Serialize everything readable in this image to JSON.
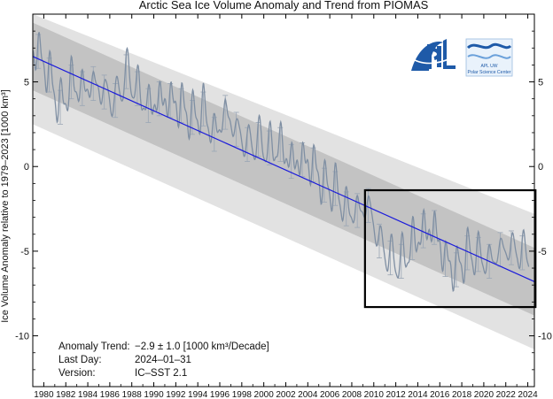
{
  "chart_data": {
    "type": "line",
    "title": "Arctic Sea Ice Volume Anomaly and Trend from PIOMAS",
    "ylabel": "Ice Volume Anomaly relative to 1979–2023 [1000 km³]",
    "xlim": [
      1979.0,
      2024.6
    ],
    "ylim": [
      -13,
      9
    ],
    "x_ticks": [
      "1980",
      "1982",
      "1984",
      "1986",
      "1988",
      "1990",
      "1992",
      "1994",
      "1996",
      "1998",
      "2000",
      "2002",
      "2004",
      "2006",
      "2008",
      "2010",
      "2012",
      "2014",
      "2016",
      "2018",
      "2020",
      "2022",
      "2024"
    ],
    "y_ticks": [
      "-10",
      "-5",
      "0",
      "5"
    ],
    "trend": {
      "start": [
        1979.0,
        6.5
      ],
      "end": [
        2024.6,
        -6.8
      ]
    },
    "bands": [
      {
        "name": "",
        "offset": 2.0,
        "color": "#c3c3c3"
      },
      {
        "name": "",
        "offset": 4.0,
        "color": "#e2e2e2"
      }
    ],
    "annual_points": [
      [
        1979.5,
        6.8
      ],
      [
        1980.5,
        5.4
      ],
      [
        1981.5,
        3.5
      ],
      [
        1982.5,
        5.0
      ],
      [
        1983.5,
        4.6
      ],
      [
        1984.5,
        4.9
      ],
      [
        1985.5,
        4.4
      ],
      [
        1986.5,
        3.9
      ],
      [
        1987.5,
        5.6
      ],
      [
        1988.5,
        4.6
      ],
      [
        1989.5,
        3.6
      ],
      [
        1990.5,
        4.0
      ],
      [
        1991.5,
        3.9
      ],
      [
        1992.5,
        3.6
      ],
      [
        1993.5,
        2.9
      ],
      [
        1994.5,
        3.4
      ],
      [
        1995.5,
        1.9
      ],
      [
        1996.5,
        3.2
      ],
      [
        1997.5,
        2.2
      ],
      [
        1998.5,
        1.3
      ],
      [
        1999.5,
        1.6
      ],
      [
        2000.5,
        1.1
      ],
      [
        2001.5,
        1.3
      ],
      [
        2002.5,
        0.3
      ],
      [
        2003.5,
        0.4
      ],
      [
        2004.5,
        0.1
      ],
      [
        2005.5,
        -1.1
      ],
      [
        2006.5,
        -1.3
      ],
      [
        2007.5,
        -2.5
      ],
      [
        2008.5,
        -2.6
      ],
      [
        2009.5,
        -2.3
      ],
      [
        2010.5,
        -4.4
      ],
      [
        2011.5,
        -5.4
      ],
      [
        2012.5,
        -5.6
      ],
      [
        2013.5,
        -4.5
      ],
      [
        2014.5,
        -3.8
      ],
      [
        2015.5,
        -3.6
      ],
      [
        2016.5,
        -5.5
      ],
      [
        2017.5,
        -6.1
      ],
      [
        2018.5,
        -5.1
      ],
      [
        2019.5,
        -5.2
      ],
      [
        2020.5,
        -5.6
      ],
      [
        2021.5,
        -4.9
      ],
      [
        2022.5,
        -4.8
      ],
      [
        2023.5,
        -5.1
      ]
    ],
    "series_color": "#7f8fa3",
    "trend_color": "#1a1adb",
    "highlight_box": {
      "x": [
        2009.2,
        2024.7
      ],
      "y": [
        -8.3,
        -1.4
      ]
    },
    "annotations": [
      {
        "label": "Anomaly Trend:",
        "value": "−2.9 ± 1.0 [1000 km³/Decade]"
      },
      {
        "label": "Last Day:",
        "value": "2024–01–31"
      },
      {
        "label": "Version:",
        "value": "IC–SST 2.1"
      }
    ]
  },
  "logos": {
    "left": {
      "icon": "apl-logo-icon"
    },
    "right": {
      "icon": "psc-logo-icon",
      "text": "Polar Science Center",
      "small_text": "APL  UW"
    }
  }
}
